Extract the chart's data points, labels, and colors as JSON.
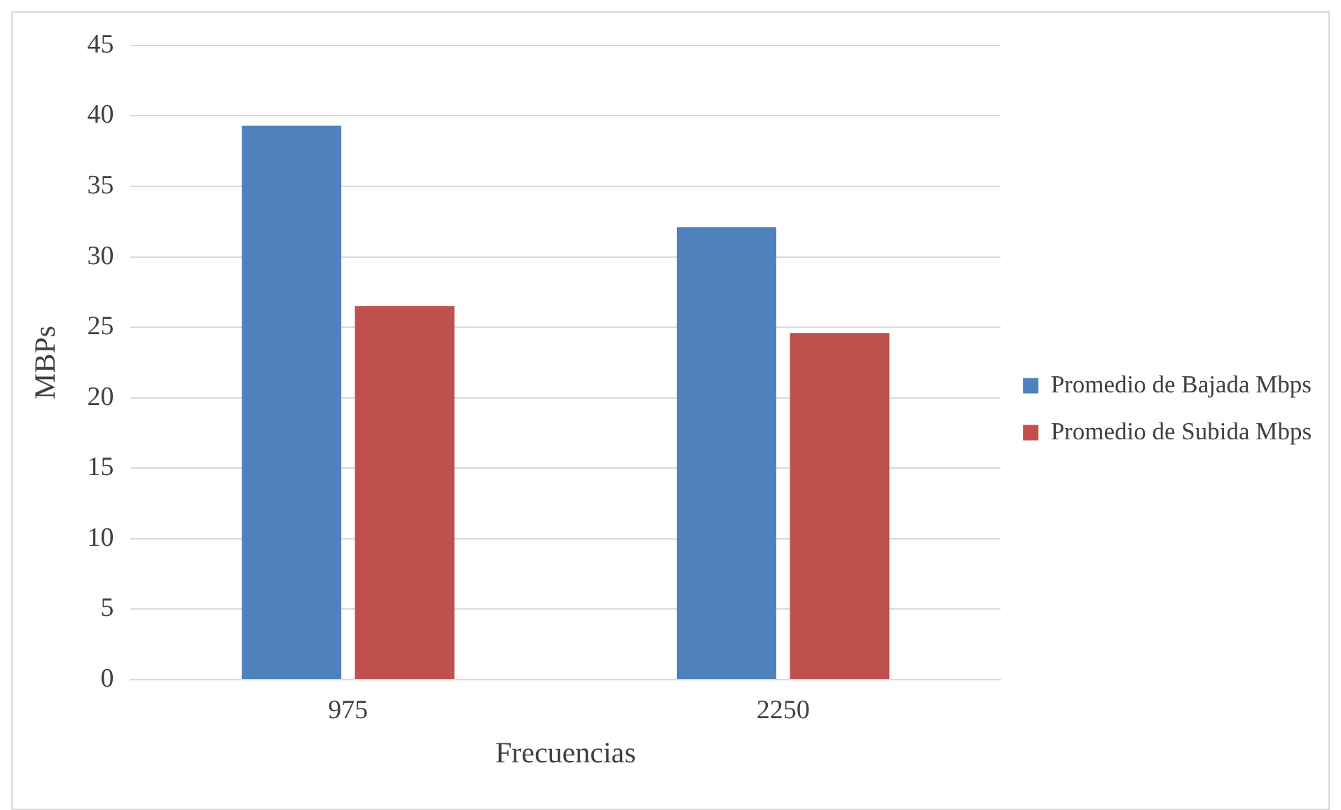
{
  "chart_data": {
    "type": "bar",
    "xlabel": "Frecuencias",
    "ylabel": "MBPs",
    "categories": [
      "975",
      "2250"
    ],
    "series": [
      {
        "name": "Promedio de Bajada Mbps",
        "color": "#4f81bd",
        "values": [
          39.3,
          32.1
        ]
      },
      {
        "name": "Promedio de Subida Mbps",
        "color": "#c0504d",
        "values": [
          26.5,
          24.6
        ]
      }
    ],
    "ylim": [
      0,
      45
    ],
    "yticks": [
      0,
      5,
      10,
      15,
      20,
      25,
      30,
      35,
      40,
      45
    ],
    "grid": "y",
    "legend": "right"
  }
}
